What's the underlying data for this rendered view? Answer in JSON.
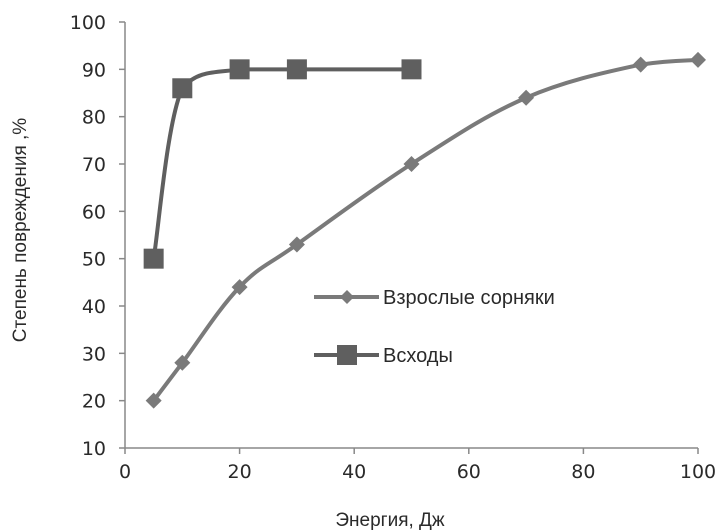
{
  "chart_data": {
    "type": "line",
    "xlabel": "Энергия, Дж",
    "ylabel": "Степень повреждения ,%",
    "xlim": [
      0,
      100
    ],
    "ylim": [
      10,
      100
    ],
    "x_ticks": [
      "0",
      "20",
      "40",
      "60",
      "80",
      "100"
    ],
    "y_ticks": [
      "10",
      "20",
      "30",
      "40",
      "50",
      "60",
      "70",
      "80",
      "90",
      "100"
    ],
    "grid": false,
    "legend": {
      "position": "center-right"
    },
    "series": [
      {
        "name": "Взрослые сорняки",
        "marker": "diamond",
        "color": "#7a7a7a",
        "points": [
          {
            "x": 5,
            "y": 20
          },
          {
            "x": 10,
            "y": 28
          },
          {
            "x": 20,
            "y": 44
          },
          {
            "x": 30,
            "y": 53
          },
          {
            "x": 50,
            "y": 70
          },
          {
            "x": 70,
            "y": 84
          },
          {
            "x": 90,
            "y": 91
          },
          {
            "x": 100,
            "y": 92
          }
        ]
      },
      {
        "name": "Всходы",
        "marker": "square",
        "color": "#5f5f5f",
        "points": [
          {
            "x": 5,
            "y": 50
          },
          {
            "x": 10,
            "y": 86
          },
          {
            "x": 20,
            "y": 90
          },
          {
            "x": 30,
            "y": 90
          },
          {
            "x": 50,
            "y": 90
          }
        ]
      }
    ]
  }
}
